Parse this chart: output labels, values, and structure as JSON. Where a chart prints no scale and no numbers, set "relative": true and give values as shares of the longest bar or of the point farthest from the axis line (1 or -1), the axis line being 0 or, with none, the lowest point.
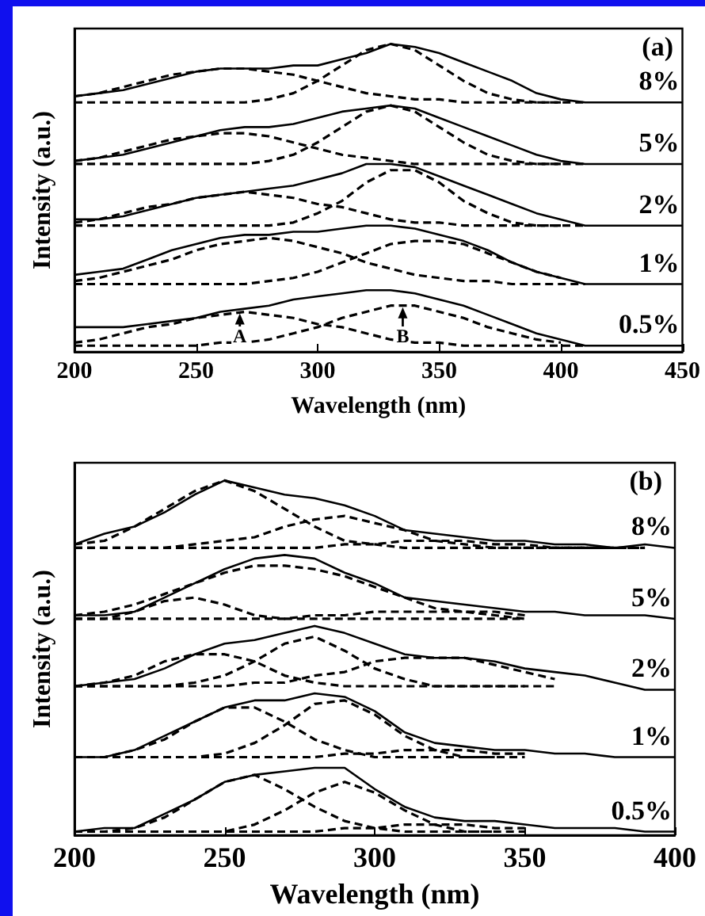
{
  "chart_data": [
    {
      "type": "line",
      "title": "(a)",
      "xlabel": "Wavelength (nm)",
      "ylabel": "Intensity (a.u.)",
      "relative": true,
      "tick_labels": "x",
      "marker": "none",
      "xlim": [
        200,
        450
      ],
      "xticks": [
        200,
        250,
        300,
        350,
        400,
        450
      ],
      "x": [
        200,
        210,
        220,
        230,
        240,
        250,
        260,
        270,
        280,
        290,
        300,
        310,
        320,
        330,
        340,
        350,
        360,
        370,
        380,
        390,
        400,
        410,
        420,
        430,
        440,
        450
      ],
      "annotations": [
        {
          "text": "A",
          "x": 268,
          "y": 0.13
        },
        {
          "text": "B",
          "x": 335,
          "y": 0.15
        }
      ],
      "series": [
        {
          "name": "8%",
          "color": "#000000",
          "line_style": "solid",
          "values": [
            0.83,
            0.84,
            0.85,
            0.87,
            0.89,
            0.91,
            0.92,
            0.92,
            0.92,
            0.93,
            0.93,
            0.95,
            0.97,
            1.0,
            0.99,
            0.97,
            0.94,
            0.91,
            0.88,
            0.84,
            0.82,
            0.81,
            0.81,
            0.81,
            0.81,
            0.81
          ]
        },
        {
          "color": "#000000",
          "line_style": "dashed",
          "values": [
            0.83,
            0.84,
            0.86,
            0.88,
            0.9,
            0.91,
            0.92,
            0.92,
            0.91,
            0.9,
            0.88,
            0.86,
            0.84,
            0.83,
            0.82,
            0.82,
            0.81,
            0.81,
            0.81,
            0.81,
            0.81,
            0.81,
            null,
            null,
            null,
            null
          ]
        },
        {
          "color": "#000000",
          "line_style": "dashed",
          "values": [
            0.81,
            0.81,
            0.81,
            0.81,
            0.81,
            0.81,
            0.81,
            0.81,
            0.82,
            0.84,
            0.88,
            0.93,
            0.98,
            1.0,
            0.98,
            0.93,
            0.88,
            0.84,
            0.82,
            0.81,
            0.81,
            null,
            null,
            null,
            null,
            null
          ]
        },
        {
          "name": "5%",
          "color": "#000000",
          "line_style": "solid",
          "values": [
            0.62,
            0.63,
            0.64,
            0.66,
            0.68,
            0.7,
            0.72,
            0.73,
            0.73,
            0.74,
            0.76,
            0.78,
            0.79,
            0.8,
            0.79,
            0.76,
            0.73,
            0.7,
            0.67,
            0.64,
            0.62,
            0.61,
            0.61,
            0.61,
            0.61,
            0.61
          ]
        },
        {
          "color": "#000000",
          "line_style": "dashed",
          "values": [
            0.62,
            0.63,
            0.65,
            0.67,
            0.69,
            0.7,
            0.71,
            0.71,
            0.7,
            0.68,
            0.66,
            0.64,
            0.63,
            0.62,
            0.61,
            0.61,
            0.61,
            0.61,
            0.61,
            0.61,
            0.61,
            0.61,
            null,
            null,
            null,
            null
          ]
        },
        {
          "color": "#000000",
          "line_style": "dashed",
          "values": [
            0.61,
            0.61,
            0.61,
            0.61,
            0.61,
            0.61,
            0.61,
            0.61,
            0.62,
            0.64,
            0.68,
            0.73,
            0.78,
            0.8,
            0.78,
            0.73,
            0.68,
            0.64,
            0.62,
            0.61,
            0.61,
            null,
            null,
            null,
            null,
            null
          ]
        },
        {
          "name": "2%",
          "color": "#000000",
          "line_style": "solid",
          "values": [
            0.43,
            0.43,
            0.44,
            0.46,
            0.48,
            0.5,
            0.51,
            0.52,
            0.53,
            0.54,
            0.56,
            0.58,
            0.61,
            0.61,
            0.6,
            0.57,
            0.54,
            0.51,
            0.48,
            0.45,
            0.43,
            0.41,
            0.41,
            0.41,
            0.41,
            0.41
          ]
        },
        {
          "color": "#000000",
          "line_style": "dashed",
          "values": [
            0.42,
            0.43,
            0.45,
            0.47,
            0.48,
            0.5,
            0.51,
            0.52,
            0.51,
            0.5,
            0.48,
            0.47,
            0.45,
            0.43,
            0.42,
            0.42,
            0.41,
            0.41,
            0.41,
            0.41,
            0.41,
            0.41,
            null,
            null,
            null,
            null
          ]
        },
        {
          "color": "#000000",
          "line_style": "dashed",
          "values": [
            0.41,
            0.41,
            0.41,
            0.41,
            0.41,
            0.41,
            0.41,
            0.41,
            0.41,
            0.42,
            0.45,
            0.49,
            0.55,
            0.59,
            0.59,
            0.55,
            0.49,
            0.45,
            0.42,
            0.41,
            0.41,
            null,
            null,
            null,
            null,
            null
          ]
        },
        {
          "name": "1%",
          "color": "#000000",
          "line_style": "solid",
          "values": [
            0.25,
            0.26,
            0.27,
            0.3,
            0.33,
            0.35,
            0.37,
            0.38,
            0.38,
            0.39,
            0.39,
            0.4,
            0.41,
            0.41,
            0.4,
            0.38,
            0.36,
            0.33,
            0.29,
            0.26,
            0.24,
            0.22,
            0.22,
            0.22,
            0.22,
            0.22
          ]
        },
        {
          "color": "#000000",
          "line_style": "dashed",
          "values": [
            0.23,
            0.24,
            0.26,
            0.28,
            0.3,
            0.33,
            0.35,
            0.36,
            0.37,
            0.36,
            0.34,
            0.32,
            0.29,
            0.27,
            0.25,
            0.24,
            0.23,
            0.23,
            0.22,
            0.22,
            0.22,
            0.22,
            null,
            null,
            null,
            null
          ]
        },
        {
          "color": "#000000",
          "line_style": "dashed",
          "values": [
            0.22,
            0.22,
            0.22,
            0.22,
            0.22,
            0.22,
            0.22,
            0.22,
            0.23,
            0.24,
            0.26,
            0.29,
            0.32,
            0.35,
            0.36,
            0.36,
            0.35,
            0.32,
            0.29,
            0.26,
            0.24,
            null,
            null,
            null,
            null,
            null
          ]
        },
        {
          "name": "0.5%",
          "color": "#000000",
          "line_style": "solid",
          "values": [
            0.08,
            0.08,
            0.08,
            0.09,
            0.1,
            0.11,
            0.13,
            0.14,
            0.15,
            0.17,
            0.18,
            0.19,
            0.2,
            0.2,
            0.19,
            0.17,
            0.15,
            0.12,
            0.09,
            0.06,
            0.04,
            0.02,
            0.02,
            0.02,
            0.02,
            0.02
          ]
        },
        {
          "color": "#000000",
          "line_style": "dashed",
          "values": [
            0.03,
            0.04,
            0.06,
            0.08,
            0.09,
            0.11,
            0.12,
            0.13,
            0.12,
            0.11,
            0.09,
            0.08,
            0.06,
            0.04,
            0.03,
            0.03,
            0.02,
            0.02,
            0.02,
            0.02,
            0.02,
            0.02,
            null,
            null,
            null,
            null
          ]
        },
        {
          "color": "#000000",
          "line_style": "dashed",
          "values": [
            0.02,
            0.02,
            0.02,
            0.02,
            0.02,
            0.02,
            0.03,
            0.03,
            0.04,
            0.06,
            0.08,
            0.11,
            0.13,
            0.15,
            0.15,
            0.13,
            0.11,
            0.08,
            0.06,
            0.04,
            0.03,
            null,
            null,
            null,
            null,
            null
          ]
        }
      ]
    },
    {
      "type": "line",
      "title": "(b)",
      "xlabel": "Wavelength (nm)",
      "ylabel": "Intensity (a.u.)",
      "relative": true,
      "tick_labels": "x",
      "marker": "none",
      "xlim": [
        200,
        400
      ],
      "xticks": [
        200,
        250,
        300,
        350,
        400
      ],
      "x": [
        200,
        210,
        220,
        230,
        240,
        250,
        260,
        270,
        280,
        290,
        300,
        310,
        320,
        330,
        340,
        350,
        360,
        370,
        380,
        390,
        400
      ],
      "series": [
        {
          "name": "8%",
          "color": "#000000",
          "line_style": "solid",
          "values": [
            0.82,
            0.85,
            0.87,
            0.91,
            0.96,
            1.0,
            0.98,
            0.96,
            0.95,
            0.93,
            0.9,
            0.86,
            0.85,
            0.84,
            0.83,
            0.83,
            0.82,
            0.82,
            0.81,
            0.82,
            0.81
          ]
        },
        {
          "color": "#000000",
          "line_style": "dashed",
          "values": [
            0.82,
            0.83,
            0.87,
            0.92,
            0.97,
            1.0,
            0.97,
            0.92,
            0.87,
            0.83,
            0.82,
            0.81,
            0.81,
            0.81,
            0.81,
            0.81,
            0.81,
            0.81,
            0.81,
            0.81,
            null
          ]
        },
        {
          "color": "#000000",
          "line_style": "dashed",
          "values": [
            0.81,
            0.81,
            0.81,
            0.81,
            0.82,
            0.83,
            0.84,
            0.87,
            0.89,
            0.9,
            0.88,
            0.86,
            0.83,
            0.82,
            0.81,
            0.81,
            0.81,
            0.81,
            0.81,
            null,
            null
          ]
        },
        {
          "color": "#000000",
          "line_style": "dashed",
          "values": [
            0.81,
            0.81,
            0.81,
            0.81,
            0.81,
            0.81,
            0.81,
            0.81,
            0.81,
            0.82,
            0.82,
            0.83,
            0.83,
            0.83,
            0.82,
            0.82,
            0.81,
            0.81,
            0.81,
            0.81,
            null
          ]
        },
        {
          "name": "5%",
          "color": "#000000",
          "line_style": "solid",
          "values": [
            0.62,
            0.62,
            0.63,
            0.67,
            0.71,
            0.75,
            0.78,
            0.79,
            0.78,
            0.74,
            0.71,
            0.67,
            0.66,
            0.65,
            0.64,
            0.63,
            0.63,
            0.62,
            0.62,
            0.62,
            0.61
          ]
        },
        {
          "color": "#000000",
          "line_style": "dashed",
          "values": [
            0.62,
            0.63,
            0.65,
            0.68,
            0.71,
            0.74,
            0.76,
            0.76,
            0.75,
            0.73,
            0.7,
            0.67,
            0.64,
            0.63,
            0.62,
            0.61,
            null,
            null,
            null,
            null,
            null
          ]
        },
        {
          "color": "#000000",
          "line_style": "dashed",
          "values": [
            0.61,
            0.61,
            0.63,
            0.66,
            0.67,
            0.65,
            0.62,
            0.61,
            0.61,
            0.61,
            0.61,
            0.61,
            0.61,
            0.61,
            0.61,
            0.61,
            null,
            null,
            null,
            null,
            null
          ]
        },
        {
          "color": "#000000",
          "line_style": "dashed",
          "values": [
            0.61,
            0.61,
            0.61,
            0.61,
            0.61,
            0.61,
            0.61,
            0.61,
            0.62,
            0.62,
            0.63,
            0.63,
            0.63,
            0.63,
            0.63,
            0.62,
            null,
            null,
            null,
            null,
            null
          ]
        },
        {
          "name": "2%",
          "color": "#000000",
          "line_style": "solid",
          "values": [
            0.42,
            0.43,
            0.44,
            0.47,
            0.51,
            0.54,
            0.55,
            0.57,
            0.59,
            0.57,
            0.54,
            0.51,
            0.5,
            0.5,
            0.49,
            0.47,
            0.46,
            0.45,
            0.43,
            0.41,
            0.41
          ]
        },
        {
          "color": "#000000",
          "line_style": "dashed",
          "values": [
            0.42,
            0.43,
            0.45,
            0.49,
            0.51,
            0.51,
            0.49,
            0.45,
            0.43,
            0.42,
            0.42,
            0.42,
            0.42,
            0.42,
            0.42,
            0.42,
            0.42,
            null,
            null,
            null,
            null
          ]
        },
        {
          "color": "#000000",
          "line_style": "dashed",
          "values": [
            0.42,
            0.42,
            0.42,
            0.42,
            0.43,
            0.45,
            0.49,
            0.54,
            0.56,
            0.52,
            0.47,
            0.44,
            0.42,
            0.42,
            0.42,
            0.42,
            null,
            null,
            null,
            null,
            null
          ]
        },
        {
          "color": "#000000",
          "line_style": "dashed",
          "values": [
            0.42,
            0.42,
            0.42,
            0.42,
            0.42,
            0.42,
            0.43,
            0.43,
            0.45,
            0.46,
            0.49,
            0.5,
            0.5,
            0.5,
            0.48,
            0.46,
            0.44,
            null,
            null,
            null,
            null
          ]
        },
        {
          "name": "1%",
          "color": "#000000",
          "line_style": "solid",
          "values": [
            0.22,
            0.22,
            0.24,
            0.28,
            0.32,
            0.36,
            0.38,
            0.38,
            0.4,
            0.39,
            0.35,
            0.29,
            0.26,
            0.25,
            0.24,
            0.24,
            0.23,
            0.23,
            0.22,
            0.22,
            0.22
          ]
        },
        {
          "color": "#000000",
          "line_style": "dashed",
          "values": [
            0.22,
            0.22,
            0.24,
            0.27,
            0.32,
            0.36,
            0.36,
            0.32,
            0.27,
            0.24,
            0.22,
            0.22,
            0.22,
            0.22,
            0.22,
            0.22,
            null,
            null,
            null,
            null,
            null
          ]
        },
        {
          "color": "#000000",
          "line_style": "dashed",
          "values": [
            0.22,
            0.22,
            0.22,
            0.22,
            0.22,
            0.23,
            0.26,
            0.31,
            0.37,
            0.38,
            0.34,
            0.28,
            0.24,
            0.22,
            0.22,
            null,
            null,
            null,
            null,
            null,
            null
          ]
        },
        {
          "color": "#000000",
          "line_style": "dashed",
          "values": [
            0.22,
            0.22,
            0.22,
            0.22,
            0.22,
            0.22,
            0.22,
            0.22,
            0.22,
            0.23,
            0.23,
            0.24,
            0.24,
            0.24,
            0.23,
            0.23,
            null,
            null,
            null,
            null,
            null
          ]
        },
        {
          "name": "0.5%",
          "color": "#000000",
          "line_style": "solid",
          "values": [
            0.01,
            0.02,
            0.02,
            0.06,
            0.1,
            0.15,
            0.17,
            0.18,
            0.19,
            0.19,
            0.13,
            0.08,
            0.05,
            0.04,
            0.04,
            0.03,
            0.02,
            0.02,
            0.02,
            0.01,
            0.01
          ]
        },
        {
          "color": "#000000",
          "line_style": "dashed",
          "values": [
            0.01,
            0.01,
            0.02,
            0.05,
            0.1,
            0.15,
            0.17,
            0.13,
            0.08,
            0.04,
            0.02,
            0.01,
            0.01,
            0.01,
            0.01,
            0.01,
            null,
            null,
            null,
            null,
            null
          ]
        },
        {
          "color": "#000000",
          "line_style": "dashed",
          "values": [
            0.01,
            0.01,
            0.01,
            0.01,
            0.01,
            0.01,
            0.03,
            0.07,
            0.12,
            0.15,
            0.12,
            0.07,
            0.03,
            0.01,
            0.01,
            null,
            null,
            null,
            null,
            null,
            null
          ]
        },
        {
          "color": "#000000",
          "line_style": "dashed",
          "values": [
            0.01,
            0.01,
            0.01,
            0.01,
            0.01,
            0.01,
            0.01,
            0.01,
            0.01,
            0.02,
            0.02,
            0.03,
            0.03,
            0.03,
            0.02,
            0.02,
            null,
            null,
            null,
            null,
            null
          ]
        }
      ]
    }
  ]
}
